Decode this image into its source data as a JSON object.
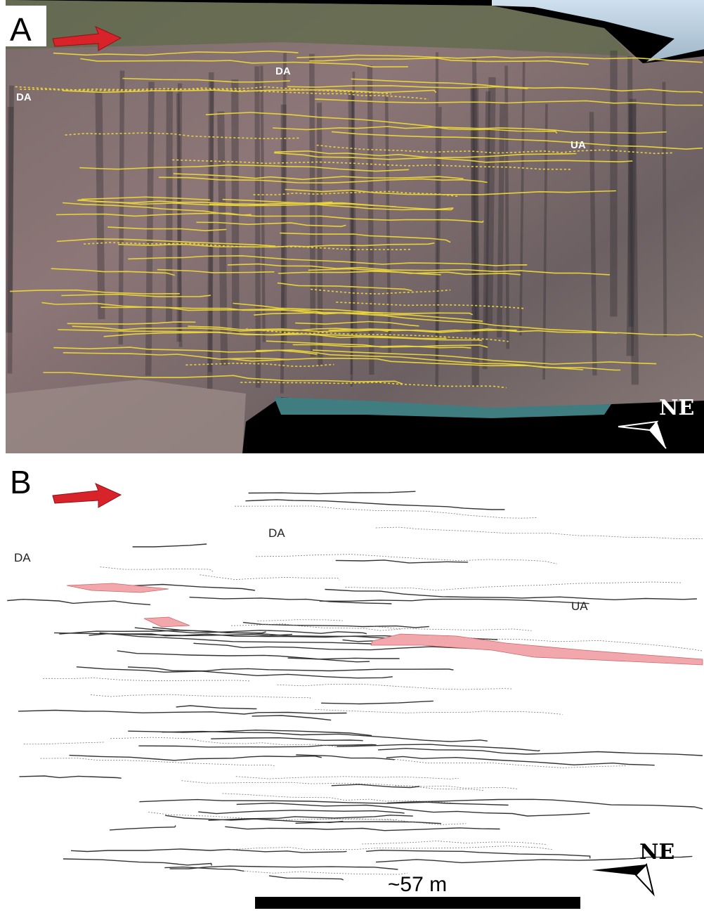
{
  "panels": [
    {
      "label": "A",
      "annotations": [
        "DA",
        "DA",
        "UA"
      ],
      "compass": "NE"
    },
    {
      "label": "B",
      "annotations": [
        "DA",
        "DA",
        "UA"
      ],
      "compass": "NE",
      "scale_bar": "~57 m"
    }
  ]
}
